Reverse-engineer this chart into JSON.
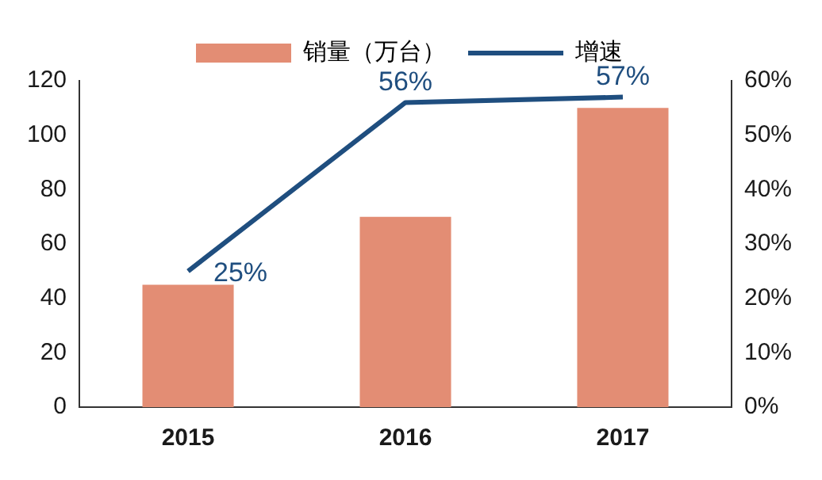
{
  "chart_data": {
    "type": "bar",
    "categories": [
      "2015",
      "2016",
      "2017"
    ],
    "legend": "top",
    "grid": false,
    "marker": "none",
    "ylim": [
      0,
      120
    ],
    "yticks": [
      0,
      20,
      40,
      60,
      80,
      100,
      120
    ],
    "y2lim": [
      0,
      60
    ],
    "y2ticks": [
      {
        "value": 0,
        "label": "0%"
      },
      {
        "value": 10,
        "label": "10%"
      },
      {
        "value": 20,
        "label": "20%"
      },
      {
        "value": 30,
        "label": "30%"
      },
      {
        "value": 40,
        "label": "40%"
      },
      {
        "value": 50,
        "label": "50%"
      },
      {
        "value": 60,
        "label": "60%"
      }
    ],
    "series": [
      {
        "name": "销量（万台）",
        "color": "#e38d74",
        "values": [
          45,
          70,
          110
        ]
      },
      {
        "name": "增速",
        "type": "line",
        "axis": "y2",
        "color": "#1f4e7f",
        "values": [
          25,
          56,
          57
        ],
        "value_labels": [
          "25%",
          "56%",
          "57%"
        ]
      }
    ]
  }
}
